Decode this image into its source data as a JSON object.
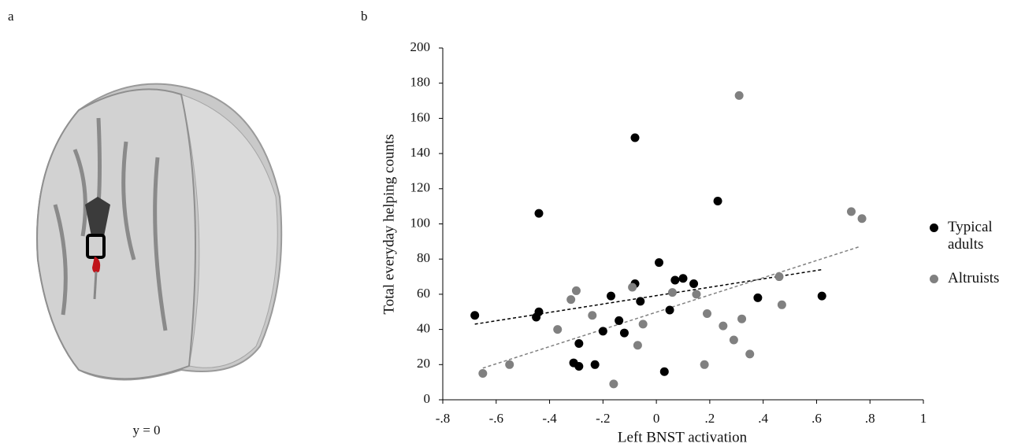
{
  "panel_a": {
    "label": "a",
    "caption": "y = 0"
  },
  "chart_data": {
    "type": "scatter",
    "panel_label": "b",
    "x_label": "Left BNST activation",
    "y_label": "Total everyday helping counts",
    "xlim": [
      -0.8,
      1
    ],
    "ylim": [
      0,
      200
    ],
    "xticks": [
      {
        "value": -0.8,
        "label": "-.8"
      },
      {
        "value": -0.6,
        "label": "-.6"
      },
      {
        "value": -0.4,
        "label": "-.4"
      },
      {
        "value": -0.2,
        "label": "-.2"
      },
      0,
      {
        "value": 0.2,
        "label": ".2"
      },
      {
        "value": 0.4,
        "label": ".4"
      },
      {
        "value": 0.6,
        "label": ".6"
      },
      {
        "value": 0.8,
        "label": ".8"
      },
      1
    ],
    "yticks": [
      0,
      20,
      40,
      60,
      80,
      100,
      120,
      140,
      160,
      180,
      200
    ],
    "series": [
      {
        "name": "Typical adults",
        "color": "#000000",
        "x": [
          -0.68,
          -0.44,
          -0.44,
          -0.45,
          -0.08,
          -0.29,
          -0.31,
          -0.29,
          -0.23,
          -0.2,
          -0.17,
          -0.14,
          -0.12,
          -0.08,
          -0.06,
          0.01,
          0.03,
          0.05,
          0.07,
          0.1,
          0.14,
          0.23,
          0.38,
          0.62
        ],
        "values": [
          48,
          106,
          50,
          47,
          149,
          32,
          21,
          19,
          20,
          39,
          59,
          45,
          38,
          66,
          56,
          78,
          16,
          51,
          68,
          69,
          66,
          113,
          58,
          59
        ],
        "trend_x": [
          -0.68,
          0.62
        ],
        "trend_y": [
          43,
          74
        ]
      },
      {
        "name": "Altruists",
        "color": "#808080",
        "x": [
          -0.65,
          -0.55,
          -0.37,
          -0.32,
          -0.3,
          -0.24,
          -0.16,
          -0.09,
          -0.07,
          -0.05,
          0.06,
          0.15,
          0.19,
          0.18,
          0.25,
          0.29,
          0.32,
          0.31,
          0.35,
          0.46,
          0.47,
          0.73,
          0.77
        ],
        "values": [
          15,
          20,
          40,
          57,
          62,
          48,
          9,
          64,
          31,
          43,
          61,
          60,
          49,
          20,
          42,
          34,
          46,
          173,
          26,
          70,
          54,
          107,
          103
        ],
        "trend_x": [
          -0.65,
          0.76
        ],
        "trend_y": [
          18,
          87
        ]
      }
    ]
  }
}
